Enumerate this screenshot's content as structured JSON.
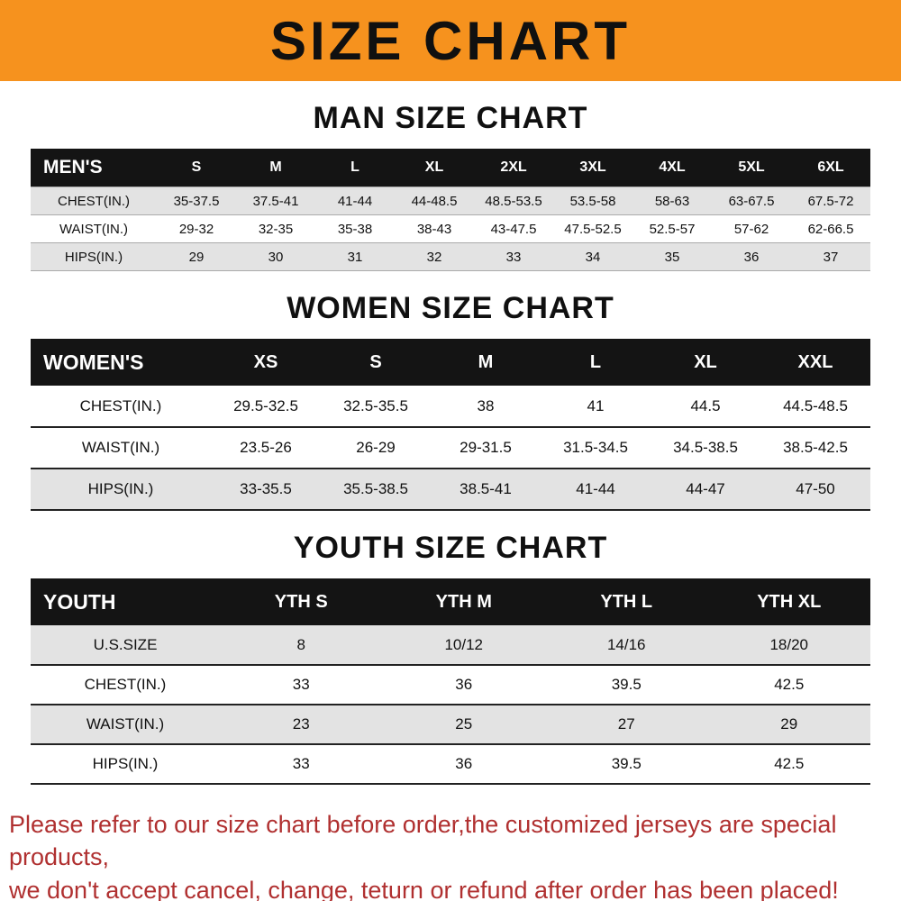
{
  "banner": {
    "title": "SIZE CHART"
  },
  "tables": [
    {
      "title": "MAN SIZE CHART",
      "header": [
        "MEN'S",
        "S",
        "M",
        "L",
        "XL",
        "2XL",
        "3XL",
        "4XL",
        "5XL",
        "6XL"
      ],
      "rows": [
        [
          "CHEST(IN.)",
          "35-37.5",
          "37.5-41",
          "41-44",
          "44-48.5",
          "48.5-53.5",
          "53.5-58",
          "58-63",
          "63-67.5",
          "67.5-72"
        ],
        [
          "WAIST(IN.)",
          "29-32",
          "32-35",
          "35-38",
          "38-43",
          "43-47.5",
          "47.5-52.5",
          "52.5-57",
          "57-62",
          "62-66.5"
        ],
        [
          "HIPS(IN.)",
          "29",
          "30",
          "31",
          "32",
          "33",
          "34",
          "35",
          "36",
          "37"
        ]
      ],
      "shaded_rows": [
        0,
        2
      ]
    },
    {
      "title": "WOMEN SIZE CHART",
      "header": [
        "WOMEN'S",
        "XS",
        "S",
        "M",
        "L",
        "XL",
        "XXL"
      ],
      "rows": [
        [
          "CHEST(IN.)",
          "29.5-32.5",
          "32.5-35.5",
          "38",
          "41",
          "44.5",
          "44.5-48.5"
        ],
        [
          "WAIST(IN.)",
          "23.5-26",
          "26-29",
          "29-31.5",
          "31.5-34.5",
          "34.5-38.5",
          "38.5-42.5"
        ],
        [
          "HIPS(IN.)",
          "33-35.5",
          "35.5-38.5",
          "38.5-41",
          "41-44",
          "44-47",
          "47-50"
        ]
      ],
      "shaded_rows": [
        2
      ]
    },
    {
      "title": "YOUTH SIZE CHART",
      "header": [
        "YOUTH",
        "YTH S",
        "YTH M",
        "YTH L",
        "YTH XL"
      ],
      "rows": [
        [
          "U.S.SIZE",
          "8",
          "10/12",
          "14/16",
          "18/20"
        ],
        [
          "CHEST(IN.)",
          "33",
          "36",
          "39.5",
          "42.5"
        ],
        [
          "WAIST(IN.)",
          "23",
          "25",
          "27",
          "29"
        ],
        [
          "HIPS(IN.)",
          "33",
          "36",
          "39.5",
          "42.5"
        ]
      ],
      "shaded_rows": [
        0,
        2
      ]
    }
  ],
  "footer": {
    "line1": "Please refer to our size chart before order,the customized jerseys are special products,",
    "line2": "we don't accept cancel, change, teturn or refund after order has been placed!"
  },
  "colors": {
    "banner_bg": "#F6921E",
    "header_bg": "#141414",
    "row_alt_bg": "#E3E3E3",
    "footer_text": "#B03030"
  }
}
